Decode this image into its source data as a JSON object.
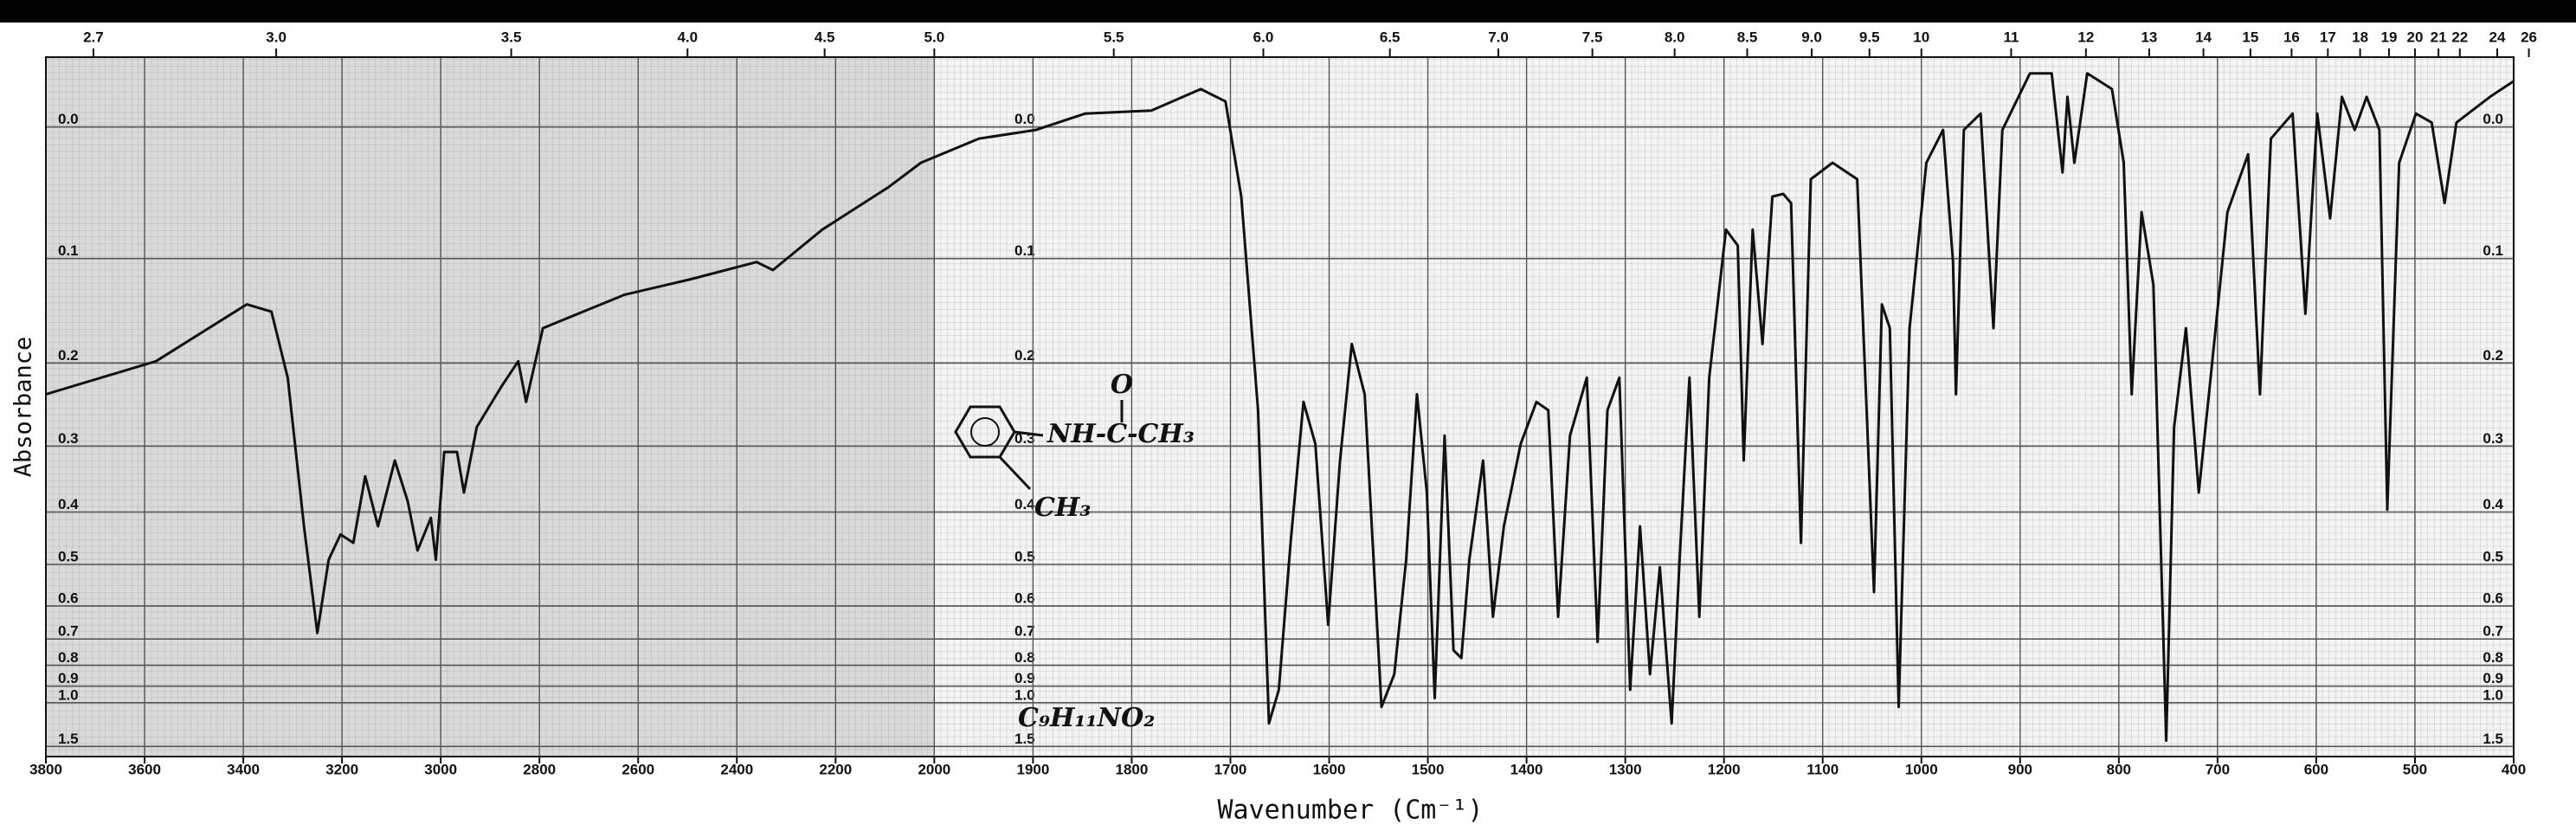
{
  "chart_data": {
    "type": "line",
    "xlabel": "Wavenumber (Cm⁻¹)",
    "ylabel": "Absorbance",
    "xlim": [
      3800,
      400
    ],
    "xscale": {
      "break": 2000,
      "expand": 2
    },
    "xticks": [
      3800,
      3600,
      3400,
      3200,
      3000,
      2800,
      2600,
      2400,
      2200,
      2000,
      1900,
      1800,
      1700,
      1600,
      1500,
      1400,
      1300,
      1200,
      1100,
      1000,
      900,
      800,
      700,
      600,
      500,
      400
    ],
    "x2ticks": [
      2.7,
      {
        "value": 3,
        "label": "3.0"
      },
      3.5,
      {
        "value": 4,
        "label": "4.0"
      },
      4.5,
      {
        "value": 5,
        "label": "5.0"
      },
      5.5,
      {
        "value": 6,
        "label": "6.0"
      },
      6.5,
      {
        "value": 7,
        "label": "7.0"
      },
      7.5,
      {
        "value": 8,
        "label": "8.0"
      },
      8.5,
      {
        "value": 9,
        "label": "9.0"
      },
      9.5,
      10,
      11,
      12,
      13,
      14,
      15,
      16,
      17,
      18,
      19,
      20,
      21,
      22,
      24,
      26
    ],
    "yscale": "absorbance",
    "ylim": [
      -0.045,
      1.8
    ],
    "yticks": [
      {
        "value": 0,
        "label": "0.0"
      },
      0.1,
      0.2,
      0.3,
      0.4,
      0.5,
      0.6,
      0.7,
      0.8,
      0.9,
      {
        "value": 1,
        "label": "1.0"
      },
      1.5
    ],
    "grid": true,
    "color": "#111111",
    "x": [
      3800,
      3577,
      3393,
      3343,
      3310,
      3277,
      3250,
      3227,
      3203,
      3177,
      3153,
      3127,
      3093,
      3067,
      3047,
      3020,
      3010,
      2993,
      2967,
      2953,
      2927,
      2877,
      2843,
      2827,
      2793,
      2627,
      2493,
      2360,
      2327,
      2227,
      2093,
      2027,
      1955,
      1897,
      1847,
      1780,
      1730,
      1705,
      1689,
      1672,
      1661,
      1651,
      1639,
      1626,
      1614,
      1601,
      1589,
      1577,
      1564,
      1547,
      1534,
      1522,
      1511,
      1501,
      1493,
      1483,
      1474,
      1466,
      1458,
      1444,
      1434,
      1423,
      1406,
      1390,
      1378,
      1368,
      1356,
      1339,
      1328,
      1318,
      1306,
      1295,
      1285,
      1275,
      1265,
      1253,
      1245,
      1235,
      1225,
      1215,
      1198,
      1186,
      1180,
      1171,
      1161,
      1151,
      1140,
      1132,
      1122,
      1112,
      1090,
      1065,
      1048,
      1040,
      1032,
      1023,
      1012,
      995,
      978,
      968,
      965,
      957,
      940,
      927,
      918,
      890,
      868,
      857,
      852,
      845,
      832,
      807,
      795,
      787,
      777,
      765,
      752,
      744,
      732,
      719,
      707,
      690,
      669,
      657,
      646,
      624,
      611,
      599,
      586,
      574,
      561,
      549,
      536,
      528,
      516,
      499,
      483,
      470,
      458,
      424,
      400
    ],
    "values": [
      0.235,
      0.198,
      0.141,
      0.148,
      0.216,
      0.425,
      0.68,
      0.49,
      0.44,
      0.456,
      0.343,
      0.425,
      0.32,
      0.382,
      0.471,
      0.41,
      0.49,
      0.308,
      0.308,
      0.368,
      0.275,
      0.226,
      0.198,
      0.244,
      0.164,
      0.132,
      0.118,
      0.103,
      0.11,
      0.076,
      0.043,
      0.025,
      0.008,
      0.002,
      -0.009,
      -0.011,
      -0.025,
      -0.017,
      0.05,
      0.254,
      1.17,
      0.92,
      0.456,
      0.244,
      0.297,
      0.654,
      0.32,
      0.18,
      0.235,
      1.03,
      0.84,
      0.49,
      0.235,
      0.368,
      0.97,
      0.286,
      0.74,
      0.77,
      0.49,
      0.32,
      0.63,
      0.425,
      0.297,
      0.244,
      0.254,
      0.63,
      0.286,
      0.216,
      0.71,
      0.254,
      0.216,
      0.92,
      0.425,
      0.84,
      0.506,
      1.17,
      0.49,
      0.216,
      0.63,
      0.216,
      0.076,
      0.089,
      0.32,
      0.076,
      0.18,
      0.05,
      0.048,
      0.055,
      0.456,
      0.037,
      0.025,
      0.037,
      0.564,
      0.141,
      0.164,
      1.03,
      0.164,
      0.025,
      0.002,
      0.103,
      0.235,
      0.002,
      -0.009,
      0.164,
      0.002,
      -0.035,
      -0.035,
      0.032,
      -0.02,
      0.025,
      -0.035,
      -0.025,
      0.025,
      0.235,
      0.062,
      0.123,
      1.39,
      0.275,
      0.164,
      0.368,
      0.216,
      0.062,
      0.019,
      0.235,
      0.008,
      -0.009,
      0.15,
      -0.009,
      0.067,
      -0.02,
      0.002,
      -0.02,
      0.002,
      0.396,
      0.025,
      -0.009,
      -0.003,
      0.055,
      -0.003,
      -0.02,
      -0.03
    ],
    "annotations": {
      "structure_top": "O",
      "structure_chain": "NH-C-CH₃",
      "structure_sub": "CH₃",
      "formula": "C₉H₁₁NO₂"
    }
  }
}
